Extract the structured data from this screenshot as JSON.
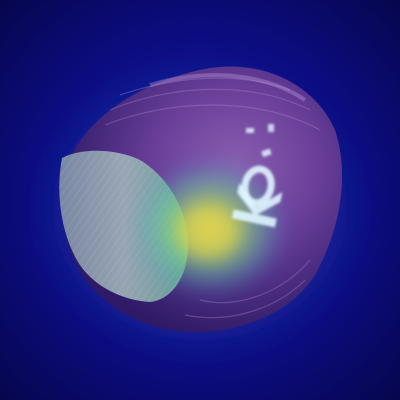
{
  "image": {
    "subject": "hazelnut",
    "overlay": "attention-heatmap",
    "colormap": "jet",
    "imprint_text": "KO",
    "colors": {
      "background": "#0a0a6e",
      "background_edge": "#06064f",
      "shell_light": "#8a5fb0",
      "shell_mid": "#6a3f9a",
      "shell_dark": "#3b1f6e",
      "base": "#9aa8b8",
      "heat_hot": "#e8d84a",
      "heat_warm": "#5cd39a",
      "heat_cool": "#2a8ad8",
      "imprint": "#dff6ff"
    }
  }
}
